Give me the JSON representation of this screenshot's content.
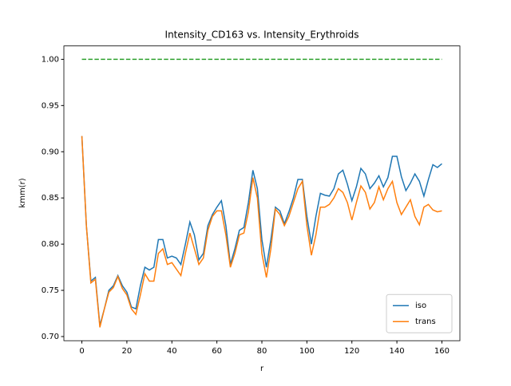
{
  "chart_data": {
    "type": "line",
    "title": "Intensity_CD163 vs. Intensity_Erythroids",
    "xlabel": "r",
    "ylabel": "kmm(r)",
    "x": [
      0,
      2,
      4,
      6,
      8,
      10,
      12,
      14,
      16,
      18,
      20,
      22,
      24,
      26,
      28,
      30,
      32,
      34,
      36,
      38,
      40,
      42,
      44,
      46,
      48,
      50,
      52,
      54,
      56,
      58,
      60,
      62,
      64,
      66,
      68,
      70,
      72,
      74,
      76,
      78,
      80,
      82,
      84,
      86,
      88,
      90,
      92,
      94,
      96,
      98,
      100,
      102,
      104,
      106,
      108,
      110,
      112,
      114,
      116,
      118,
      120,
      122,
      124,
      126,
      128,
      130,
      132,
      134,
      136,
      138,
      140,
      142,
      144,
      146,
      148,
      150,
      152,
      154,
      156,
      158,
      160
    ],
    "series": [
      {
        "name": "iso",
        "color": "#1f77b4",
        "values": [
          0.917,
          0.82,
          0.76,
          0.764,
          0.712,
          0.73,
          0.75,
          0.755,
          0.766,
          0.755,
          0.748,
          0.732,
          0.73,
          0.755,
          0.775,
          0.772,
          0.775,
          0.805,
          0.805,
          0.785,
          0.787,
          0.785,
          0.778,
          0.8,
          0.824,
          0.81,
          0.783,
          0.79,
          0.82,
          0.832,
          0.84,
          0.847,
          0.82,
          0.778,
          0.795,
          0.815,
          0.818,
          0.845,
          0.88,
          0.86,
          0.805,
          0.775,
          0.805,
          0.84,
          0.836,
          0.822,
          0.835,
          0.85,
          0.87,
          0.87,
          0.83,
          0.8,
          0.83,
          0.855,
          0.853,
          0.852,
          0.86,
          0.876,
          0.88,
          0.865,
          0.847,
          0.862,
          0.882,
          0.876,
          0.86,
          0.866,
          0.874,
          0.862,
          0.872,
          0.895,
          0.895,
          0.873,
          0.858,
          0.866,
          0.876,
          0.868,
          0.852,
          0.87,
          0.886,
          0.883,
          0.887
        ]
      },
      {
        "name": "trans",
        "color": "#ff7f0e",
        "values": [
          0.917,
          0.82,
          0.758,
          0.762,
          0.71,
          0.73,
          0.748,
          0.753,
          0.765,
          0.752,
          0.745,
          0.73,
          0.724,
          0.745,
          0.768,
          0.76,
          0.76,
          0.79,
          0.795,
          0.778,
          0.78,
          0.773,
          0.766,
          0.79,
          0.812,
          0.795,
          0.778,
          0.785,
          0.815,
          0.83,
          0.836,
          0.836,
          0.81,
          0.775,
          0.79,
          0.81,
          0.812,
          0.835,
          0.872,
          0.85,
          0.79,
          0.764,
          0.795,
          0.838,
          0.832,
          0.82,
          0.83,
          0.845,
          0.86,
          0.868,
          0.82,
          0.788,
          0.81,
          0.84,
          0.84,
          0.843,
          0.85,
          0.86,
          0.856,
          0.845,
          0.826,
          0.845,
          0.863,
          0.856,
          0.838,
          0.845,
          0.862,
          0.848,
          0.86,
          0.868,
          0.845,
          0.832,
          0.84,
          0.848,
          0.83,
          0.821,
          0.84,
          0.843,
          0.837,
          0.835,
          0.836
        ]
      },
      {
        "color": "#2ca02c",
        "dashed": true,
        "x": [
          0,
          160
        ],
        "values": [
          1,
          1
        ]
      }
    ],
    "xlim": [
      -8,
      168
    ],
    "ylim": [
      0.6955,
      1.0145
    ],
    "xticks": [
      0,
      20,
      40,
      60,
      80,
      100,
      120,
      140,
      160
    ],
    "yticks": [
      {
        "value": 0.7,
        "label": "0.70"
      },
      0.75,
      {
        "value": 0.8,
        "label": "0.80"
      },
      0.85,
      {
        "value": 0.9,
        "label": "0.90"
      },
      0.95,
      {
        "value": 1,
        "label": "1.00"
      }
    ],
    "legend": "lower right"
  }
}
